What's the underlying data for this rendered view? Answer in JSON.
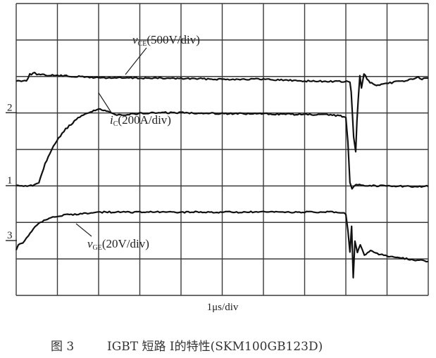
{
  "chart_data": {
    "type": "line",
    "title": "",
    "x_axis": {
      "label": "1μs/div",
      "divisions": 10
    },
    "y_axis": {
      "divisions": 8
    },
    "grid": true,
    "series": [
      {
        "name": "vCE(500V/div)",
        "label_main": "v",
        "label_sub": "CE",
        "label_scale": "(500V/div)",
        "ground_marker": "",
        "points": [
          [
            0,
            -0.1
          ],
          [
            0.25,
            -0.08
          ],
          [
            0.33,
            0.08
          ],
          [
            0.45,
            0.12
          ],
          [
            0.55,
            0.07
          ],
          [
            1.0,
            0.05
          ],
          [
            2.0,
            -0.01
          ],
          [
            3.0,
            -0.02
          ],
          [
            4.0,
            -0.03
          ],
          [
            5.0,
            -0.05
          ],
          [
            6.0,
            -0.05
          ],
          [
            7.0,
            -0.1
          ],
          [
            8.1,
            -0.12
          ],
          [
            8.13,
            -0.4
          ],
          [
            8.19,
            -1.65
          ],
          [
            8.24,
            -2.05
          ],
          [
            8.27,
            -1.2
          ],
          [
            8.3,
            -0.6
          ],
          [
            8.34,
            0.05
          ],
          [
            8.38,
            -0.3
          ],
          [
            8.44,
            0.1
          ],
          [
            8.55,
            -0.1
          ],
          [
            8.7,
            -0.22
          ],
          [
            8.9,
            -0.2
          ],
          [
            9.2,
            -0.12
          ],
          [
            9.5,
            -0.08
          ],
          [
            9.75,
            0.0
          ],
          [
            9.85,
            -0.05
          ],
          [
            10,
            -0.02
          ]
        ]
      },
      {
        "name": "iC(200A/div)",
        "label_main": "i",
        "label_sub": "C",
        "label_scale": "(200A/div)",
        "ground_marker": "1",
        "gain_marker": "2",
        "points": [
          [
            0,
            0
          ],
          [
            0.4,
            0
          ],
          [
            0.55,
            0.1
          ],
          [
            0.7,
            0.6
          ],
          [
            0.9,
            1.1
          ],
          [
            1.2,
            1.55
          ],
          [
            1.5,
            1.85
          ],
          [
            1.8,
            2.03
          ],
          [
            2.0,
            2.1
          ],
          [
            2.15,
            2.05
          ],
          [
            2.4,
            1.95
          ],
          [
            2.7,
            1.95
          ],
          [
            3.0,
            1.98
          ],
          [
            3.5,
            2.0
          ],
          [
            4.0,
            2.0
          ],
          [
            4.5,
            1.99
          ],
          [
            5.0,
            1.98
          ],
          [
            5.5,
            1.97
          ],
          [
            6.0,
            1.97
          ],
          [
            6.5,
            1.96
          ],
          [
            7.0,
            1.95
          ],
          [
            7.5,
            1.94
          ],
          [
            7.8,
            1.92
          ],
          [
            7.95,
            1.9
          ],
          [
            8.0,
            1.85
          ],
          [
            8.05,
            1.2
          ],
          [
            8.1,
            0.1
          ],
          [
            8.15,
            -0.1
          ],
          [
            8.25,
            0.05
          ],
          [
            8.5,
            0.0
          ],
          [
            9.0,
            0.0
          ],
          [
            9.5,
            -0.02
          ],
          [
            10,
            -0.02
          ]
        ]
      },
      {
        "name": "vGE(20V/div)",
        "label_main": "v",
        "label_sub": "GE",
        "label_scale": "(20V/div)",
        "ground_marker": "3",
        "points": [
          [
            0,
            -0.85
          ],
          [
            0.05,
            -0.7
          ],
          [
            0.2,
            -0.6
          ],
          [
            0.3,
            -0.45
          ],
          [
            0.5,
            -0.15
          ],
          [
            0.8,
            0.05
          ],
          [
            1.2,
            0.12
          ],
          [
            1.6,
            0.16
          ],
          [
            2.0,
            0.2
          ],
          [
            3.0,
            0.2
          ],
          [
            4.0,
            0.2
          ],
          [
            5.0,
            0.2
          ],
          [
            6.0,
            0.2
          ],
          [
            7.0,
            0.2
          ],
          [
            7.8,
            0.2
          ],
          [
            8.0,
            0.15
          ],
          [
            8.05,
            -0.3
          ],
          [
            8.1,
            -0.9
          ],
          [
            8.14,
            -0.2
          ],
          [
            8.18,
            -1.6
          ],
          [
            8.22,
            -0.6
          ],
          [
            8.28,
            -0.9
          ],
          [
            8.35,
            -0.7
          ],
          [
            8.45,
            -1.0
          ],
          [
            8.6,
            -0.85
          ],
          [
            8.8,
            -0.95
          ],
          [
            9.0,
            -1.0
          ],
          [
            9.3,
            -1.05
          ],
          [
            9.6,
            -1.1
          ],
          [
            10,
            -1.15
          ]
        ]
      }
    ]
  },
  "caption": {
    "figure": "图 3",
    "text": "IGBT 短路 Ⅰ的特性(SKM100GB123D)"
  }
}
